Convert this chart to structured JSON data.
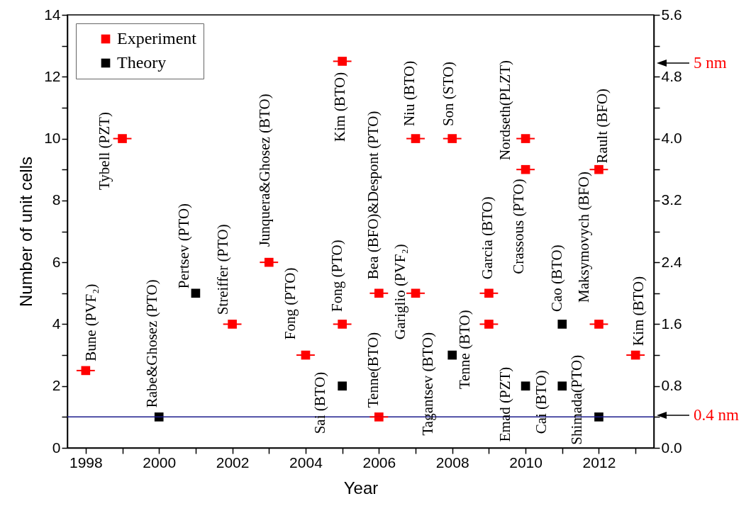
{
  "chart_data": {
    "type": "scatter",
    "xlabel": "Year",
    "ylabel": "Number of unit cells",
    "xlim": [
      1997.5,
      2013.5
    ],
    "xticks": [
      1998,
      {
        "value": 1999,
        "label": null
      },
      2000,
      {
        "value": 2001,
        "label": null
      },
      2002,
      {
        "value": 2003,
        "label": null
      },
      2004,
      {
        "value": 2005,
        "label": null
      },
      2006,
      {
        "value": 2007,
        "label": null
      },
      2008,
      {
        "value": 2009,
        "label": null
      },
      2010,
      {
        "value": 2011,
        "label": null
      },
      2012,
      {
        "value": 2013,
        "label": null
      }
    ],
    "ylim": [
      0,
      14
    ],
    "yticks": [
      0,
      {
        "value": 1,
        "label": null
      },
      2,
      {
        "value": 3,
        "label": null
      },
      4,
      {
        "value": 5,
        "label": null
      },
      6,
      {
        "value": 7,
        "label": null
      },
      8,
      {
        "value": 9,
        "label": null
      },
      10,
      {
        "value": 11,
        "label": null
      },
      12,
      {
        "value": 13,
        "label": null
      },
      14
    ],
    "y2lim": [
      0,
      5.6
    ],
    "y2ticks": [
      {
        "value": 0,
        "label": "0.0"
      },
      {
        "value": 0.4,
        "label": null
      },
      {
        "value": 0.8,
        "label": "0.8"
      },
      {
        "value": 1.2,
        "label": null
      },
      {
        "value": 1.6,
        "label": "1.6"
      },
      {
        "value": 2.0,
        "label": null
      },
      {
        "value": 2.4,
        "label": "2.4"
      },
      {
        "value": 2.8,
        "label": null
      },
      {
        "value": 3.2,
        "label": "3.2"
      },
      {
        "value": 3.6,
        "label": null
      },
      {
        "value": 4.0,
        "label": "4.0"
      },
      {
        "value": 4.4,
        "label": null
      },
      {
        "value": 4.8,
        "label": "4.8"
      },
      {
        "value": 5.2,
        "label": null
      },
      {
        "value": 5.6,
        "label": "5.6"
      }
    ],
    "marker": "square",
    "legend": "top left",
    "grid": false,
    "series": [
      {
        "name": "Experiment",
        "color": "#ff0000",
        "x": [
          1998,
          1999,
          2002,
          2003,
          2004,
          2005,
          2005,
          2006,
          2006,
          2007,
          2007,
          2008,
          2009,
          2009,
          2010,
          2010,
          2012,
          2012,
          2013
        ],
        "values": [
          2.5,
          10,
          4,
          6,
          3,
          12.5,
          4,
          5,
          1,
          10,
          5,
          10,
          5,
          4,
          10,
          9,
          9,
          4,
          3
        ],
        "xerrors": [
          0.25,
          0.25,
          0.25,
          0.25,
          0.25,
          0.25,
          0.25,
          0.25,
          0.25,
          0.25,
          0.25,
          0.25,
          0.25,
          0.25,
          0.25,
          0.25,
          0.25,
          0.25,
          0.25
        ]
      },
      {
        "name": "Theory",
        "color": "#000000",
        "x": [
          2000,
          2001,
          2005,
          2008,
          2010,
          2011,
          2011,
          2012
        ],
        "values": [
          1,
          5,
          2,
          3,
          2,
          4,
          2,
          1
        ]
      }
    ],
    "ref_lines": [
      {
        "axis": "y",
        "value": 1,
        "color": "#1c1c8c"
      }
    ],
    "annotations": [
      {
        "text": "Bune (PVF₂)",
        "x": 1998,
        "y": 2.5
      },
      {
        "text": "Tybell (PZT)",
        "x": 1999,
        "y": 10
      },
      {
        "text": "Rabe&Ghosez (PTO)",
        "x": 2000,
        "y": 1
      },
      {
        "text": "Pertsev (PTO)",
        "x": 2001,
        "y": 5
      },
      {
        "text": "Streiffer (PTO)",
        "x": 2002,
        "y": 4
      },
      {
        "text": "Junquera&Ghosez  (BTO)",
        "x": 2003,
        "y": 6
      },
      {
        "text": "Fong (PTO)",
        "x": 2004,
        "y": 3
      },
      {
        "text": "Sai (BTO)",
        "x": 2005,
        "y": 2
      },
      {
        "text": "Kim (BTO)",
        "x": 2005,
        "y": 12.5
      },
      {
        "text": "Fong (PTO)",
        "x": 2005,
        "y": 4
      },
      {
        "text": "Tenne(BTO)",
        "x": 2006,
        "y": 1
      },
      {
        "text": "Bea (BFO)&Despont (PTO)",
        "x": 2006,
        "y": 5
      },
      {
        "text": "Gariglio (PVF₂)",
        "x": 2007,
        "y": 5
      },
      {
        "text": "Niu (BTO)",
        "x": 2007,
        "y": 10
      },
      {
        "text": "Tagantsev (BTO)",
        "x": 2008,
        "y": 3
      },
      {
        "text": "Son (STO)",
        "x": 2008,
        "y": 10
      },
      {
        "text": "Tenne (BTO)",
        "x": 2009,
        "y": 4
      },
      {
        "text": "Garcia (BTO)",
        "x": 2009,
        "y": 5
      },
      {
        "text": "Emad (PZT)",
        "x": 2010,
        "y": 2
      },
      {
        "text": "Nordseth(PLZT)",
        "x": 2010,
        "y": 10
      },
      {
        "text": "Crassous (PTO)",
        "x": 2010,
        "y": 9
      },
      {
        "text": "Cai (BTO)",
        "x": 2011,
        "y": 2
      },
      {
        "text": "Cao (BTO)",
        "x": 2011,
        "y": 4
      },
      {
        "text": "Shimada(PTO)",
        "x": 2012,
        "y": 1
      },
      {
        "text": "Maksymovych (BFO)",
        "x": 2012,
        "y": 4
      },
      {
        "text": "Rault (BFO)",
        "x": 2012,
        "y": 9
      },
      {
        "text": "Kim (BTO)",
        "x": 2013,
        "y": 3
      },
      "5 nm",
      "0.4 nm"
    ]
  }
}
